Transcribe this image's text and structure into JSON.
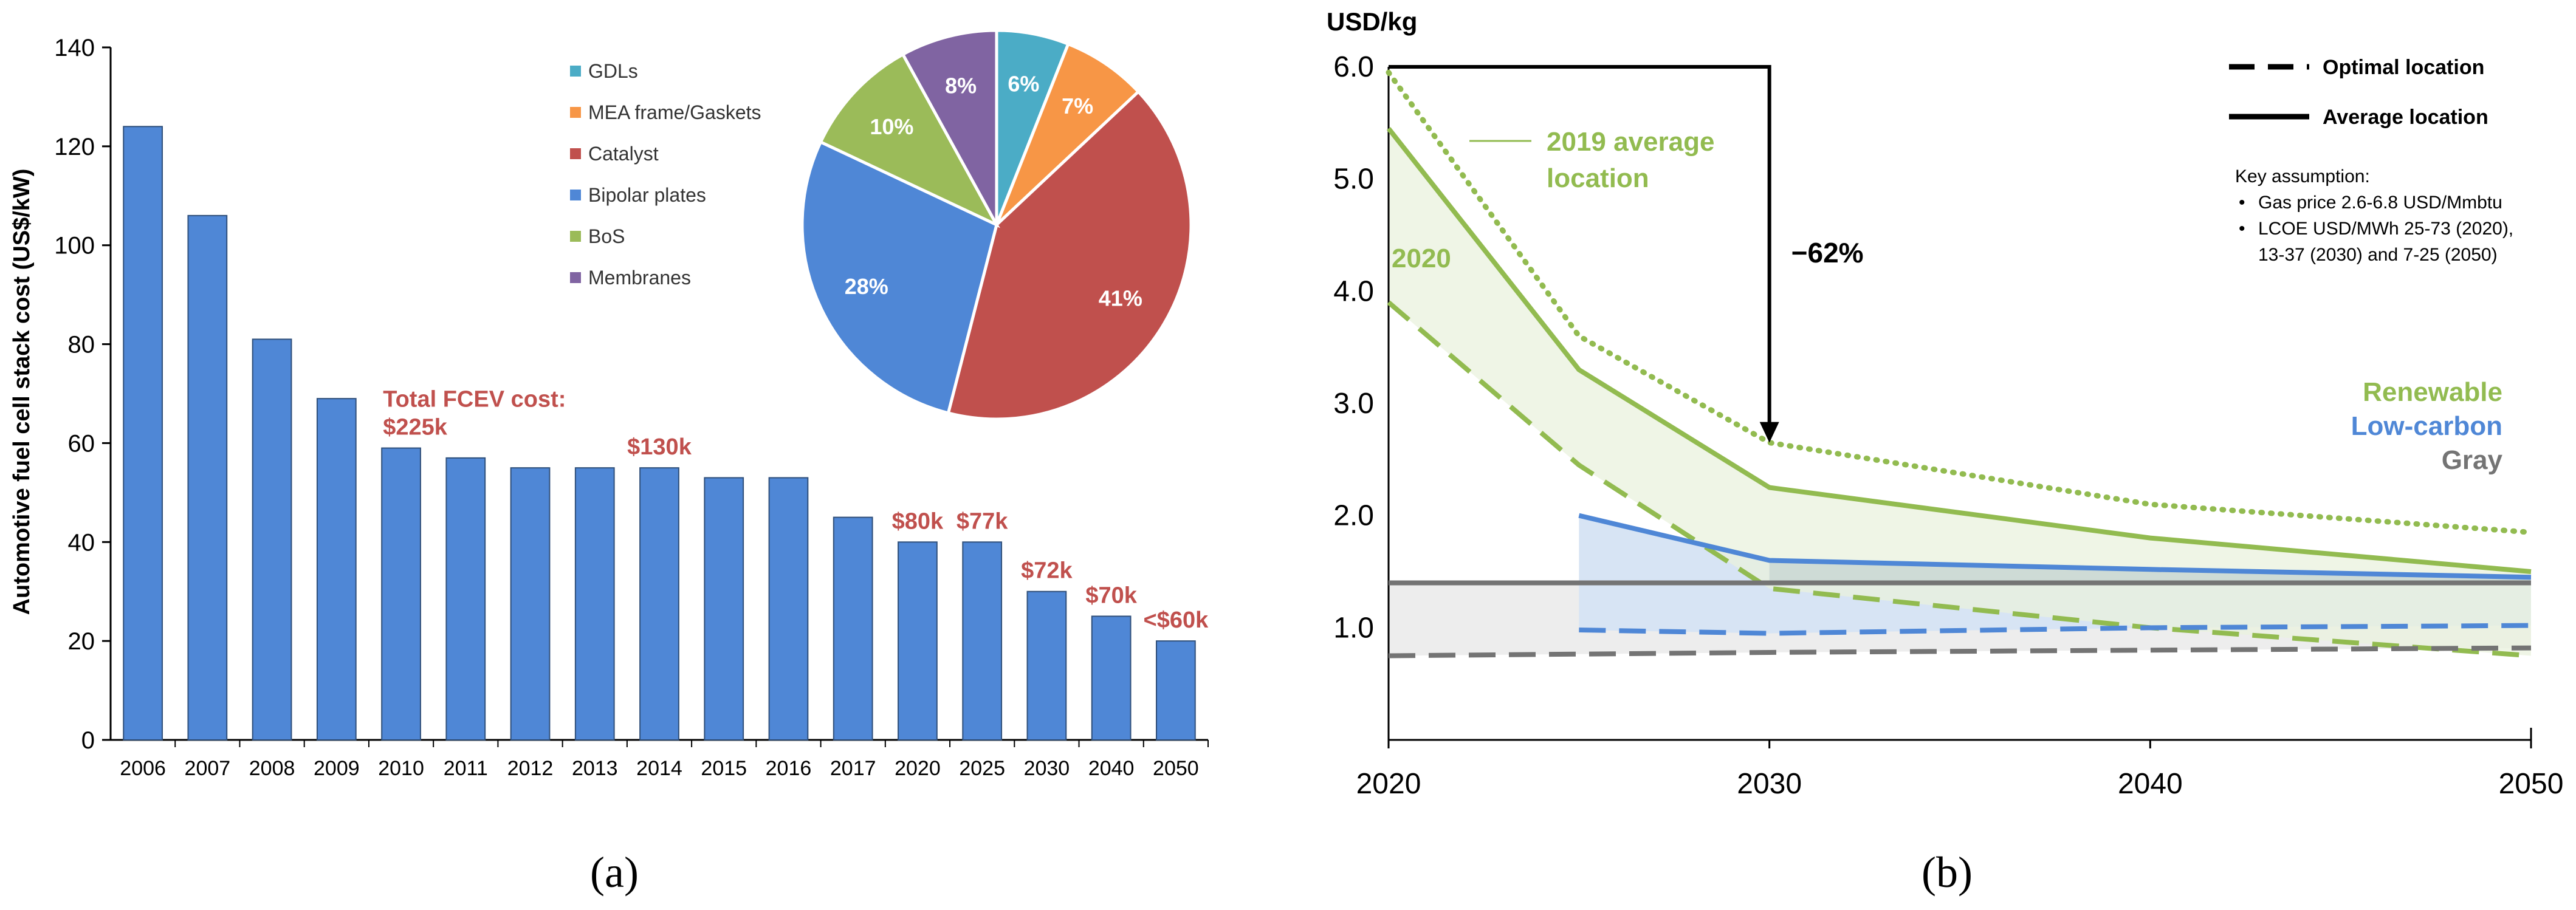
{
  "colors": {
    "bar": "#4f87d6",
    "bar_stroke": "#2f4f7a",
    "annotation_red": "#c0504d",
    "renewable": "#92bb50",
    "lowcarbon": "#4f87d6",
    "gray": "#747474",
    "renewable_fill": "#eaf1dd",
    "lowcarbon_fill": "#d7e4f4",
    "gray_fill": "#ededed",
    "overlap_fill": "#c8d6d2"
  },
  "panel_labels": {
    "a": "(a)",
    "b": "(b)"
  },
  "chart_data": [
    {
      "type": "bar",
      "title": "",
      "xlabel": "",
      "ylabel": "Automotive fuel cell stack cost (US$/kW)",
      "ylim": [
        0,
        140
      ],
      "yticks": [
        0,
        20,
        40,
        60,
        80,
        100,
        120,
        140
      ],
      "categories": [
        "2006",
        "2007",
        "2008",
        "2009",
        "2010",
        "2011",
        "2012",
        "2013",
        "2014",
        "2015",
        "2016",
        "2017",
        "2020",
        "2025",
        "2030",
        "2040",
        "2050"
      ],
      "values": [
        124,
        106,
        81,
        69,
        59,
        57,
        55,
        55,
        55,
        53,
        53,
        45,
        40,
        40,
        30,
        25,
        20
      ],
      "annotations": [
        {
          "category": "2010",
          "lines": [
            "Total FCEV cost:",
            "$225k"
          ]
        },
        {
          "category": "2014",
          "lines": [
            "$130k"
          ]
        },
        {
          "category": "2020",
          "lines": [
            "$80k"
          ]
        },
        {
          "category": "2025",
          "lines": [
            "$77k"
          ]
        },
        {
          "category": "2030",
          "lines": [
            "$72k"
          ]
        },
        {
          "category": "2040",
          "lines": [
            "$70k"
          ]
        },
        {
          "category": "2050",
          "lines": [
            "<$60k"
          ]
        }
      ],
      "inset_pie": {
        "type": "pie",
        "legend_position": "left",
        "slices": [
          {
            "label": "GDLs",
            "value": 6,
            "text": "6%",
            "color": "#4bacc6"
          },
          {
            "label": "MEA frame/Gaskets",
            "value": 7,
            "text": "7%",
            "color": "#f79646"
          },
          {
            "label": "Catalyst",
            "value": 41,
            "text": "41%",
            "color": "#c0504d"
          },
          {
            "label": "Bipolar plates",
            "value": 28,
            "text": "28%",
            "color": "#4f87d6"
          },
          {
            "label": "BoS",
            "value": 10,
            "text": "10%",
            "color": "#9bbb59"
          },
          {
            "label": "Membranes",
            "value": 8,
            "text": "8%",
            "color": "#8064a2"
          }
        ]
      }
    },
    {
      "type": "line",
      "title": "",
      "ylabel": "USD/kg",
      "xlim": [
        2020,
        2050
      ],
      "ylim": [
        0,
        6.0
      ],
      "xticks": [
        2020,
        2030,
        2040,
        2050
      ],
      "yticks": [
        1.0,
        2.0,
        3.0,
        4.0,
        5.0,
        6.0
      ],
      "ytick_labels": [
        "1.0",
        "2.0",
        "3.0",
        "4.0",
        "5.0",
        "6.0"
      ],
      "series": [
        {
          "name": "Renewable average",
          "group": "Renewable",
          "style": "solid",
          "x": [
            2020,
            2025,
            2030,
            2040,
            2050
          ],
          "y": [
            5.45,
            3.3,
            2.25,
            1.8,
            1.5
          ]
        },
        {
          "name": "Renewable optimal",
          "group": "Renewable",
          "style": "dashed",
          "x": [
            2020,
            2025,
            2030,
            2040,
            2050
          ],
          "y": [
            3.9,
            2.45,
            1.35,
            1.0,
            0.75
          ]
        },
        {
          "name": "Renewable 2019 average location",
          "group": "Renewable",
          "style": "dotted",
          "x": [
            2020,
            2025,
            2030,
            2040,
            2050
          ],
          "y": [
            5.95,
            3.6,
            2.65,
            2.1,
            1.85
          ]
        },
        {
          "name": "Low-carbon average",
          "group": "Low-carbon",
          "style": "solid",
          "x": [
            2025,
            2030,
            2040,
            2050
          ],
          "y": [
            2.0,
            1.6,
            1.52,
            1.45
          ]
        },
        {
          "name": "Low-carbon optimal",
          "group": "Low-carbon",
          "style": "dashed",
          "x": [
            2025,
            2030,
            2040,
            2050
          ],
          "y": [
            0.98,
            0.95,
            1.0,
            1.02
          ]
        },
        {
          "name": "Gray average",
          "group": "Gray",
          "style": "solid",
          "x": [
            2020,
            2050
          ],
          "y": [
            1.4,
            1.4
          ]
        },
        {
          "name": "Gray optimal",
          "group": "Gray",
          "style": "dashed",
          "x": [
            2020,
            2030,
            2040,
            2050
          ],
          "y": [
            0.75,
            0.78,
            0.8,
            0.82
          ]
        }
      ],
      "legend": {
        "position": "top-right",
        "entries": [
          {
            "style": "dashed",
            "label": "Optimal location"
          },
          {
            "style": "solid",
            "label": "Average location"
          }
        ]
      },
      "key_assumption": {
        "title": "Key assumption:",
        "bullets": [
          "Gas price 2.6-6.8 USD/Mmbtu",
          "LCOE USD/MWh 25-73 (2020),",
          "13-37 (2030) and 7-25 (2050)"
        ],
        "bullet_starts": [
          true,
          true,
          false
        ]
      },
      "category_labels": [
        "Renewable",
        "Low-carbon",
        "Gray"
      ],
      "annotations": {
        "avg2019": [
          "2019 average",
          "location"
        ],
        "year_2020": "2020",
        "reduction": "−62%",
        "arrow": {
          "from_x": 2020,
          "to_x": 2030,
          "from_y": 6.0,
          "to_y": 2.65
        }
      }
    }
  ]
}
